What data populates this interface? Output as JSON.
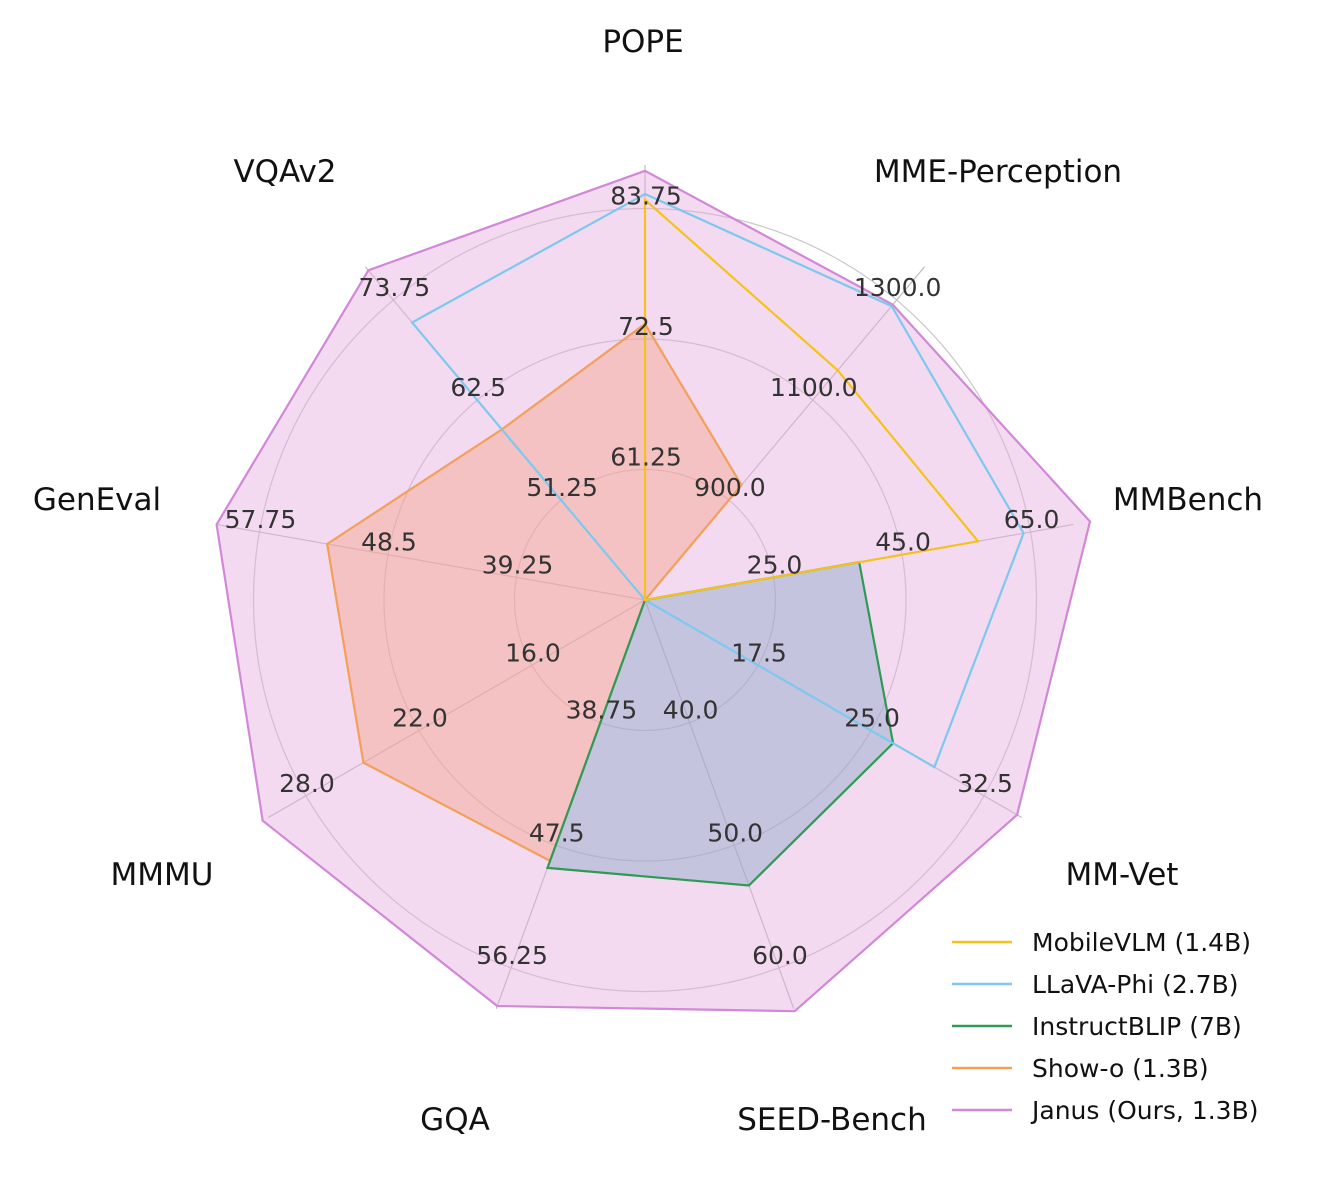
{
  "chart_data": {
    "type": "radar",
    "axes": [
      {
        "name": "POPE",
        "ticks": [
          "61.25",
          "72.5",
          "83.75"
        ],
        "min": 50,
        "max": 87.5
      },
      {
        "name": "MME-Perception",
        "ticks": [
          "900.0",
          "1100.0",
          "1300.0"
        ],
        "min": 700,
        "max": 1420
      },
      {
        "name": "MMBench",
        "ticks": [
          "25.0",
          "45.0",
          "65.0"
        ],
        "min": 5,
        "max": 67
      },
      {
        "name": "MM-Vet",
        "ticks": [
          "17.5",
          "25.0",
          "32.5"
        ],
        "min": 10,
        "max": 34.6
      },
      {
        "name": "SEED-Bench",
        "ticks": [
          "40.0",
          "50.0",
          "60.0"
        ],
        "min": 30,
        "max": 63.5
      },
      {
        "name": "GQA",
        "ticks": [
          "38.75",
          "47.5",
          "56.25"
        ],
        "min": 30,
        "max": 59.3
      },
      {
        "name": "MMMU",
        "ticks": [
          "16.0",
          "22.0",
          "28.0"
        ],
        "min": 10,
        "max": 30.2
      },
      {
        "name": "GenEval",
        "ticks": [
          "39.25",
          "48.5",
          "57.75"
        ],
        "min": 30,
        "max": 61
      },
      {
        "name": "VQAv2",
        "ticks": [
          "51.25",
          "62.5",
          "73.75"
        ],
        "min": 40,
        "max": 77.7
      }
    ],
    "series": [
      {
        "name": "MobileVLM (1.4B)",
        "color": "#f5c21b",
        "fill": false,
        "values": [
          84.5,
          1196.2,
          53.2,
          null,
          null,
          null,
          null,
          null,
          null
        ]
      },
      {
        "name": "LLaVA-Phi (2.7B)",
        "color": "#7ec8ef",
        "fill": false,
        "values": [
          85.0,
          1335.1,
          59.8,
          28.9,
          null,
          null,
          null,
          null,
          71.4
        ]
      },
      {
        "name": "InstructBLIP (7B)",
        "color": "#2e9a55",
        "fill": true,
        "fillColor": "#8aa8c8",
        "values": [
          null,
          null,
          36.0,
          26.2,
          53.4,
          49.2,
          null,
          null,
          null
        ]
      },
      {
        "name": "Show-o (1.3B)",
        "color": "#f2a05a",
        "fill": true,
        "fillColor": "#f4a58c",
        "values": [
          73.8,
          948.4,
          null,
          null,
          null,
          48.7,
          25.1,
          53.0,
          59.3
        ]
      },
      {
        "name": "Janus (Ours, 1.3B)",
        "color": "#d287d8",
        "fill": true,
        "fillColor": "#e6aede",
        "values": [
          87.0,
          1338.0,
          69.4,
          34.3,
          63.7,
          59.1,
          30.5,
          61.0,
          77.3
        ]
      }
    ],
    "legend_position": "bottom-right",
    "grid": true
  }
}
